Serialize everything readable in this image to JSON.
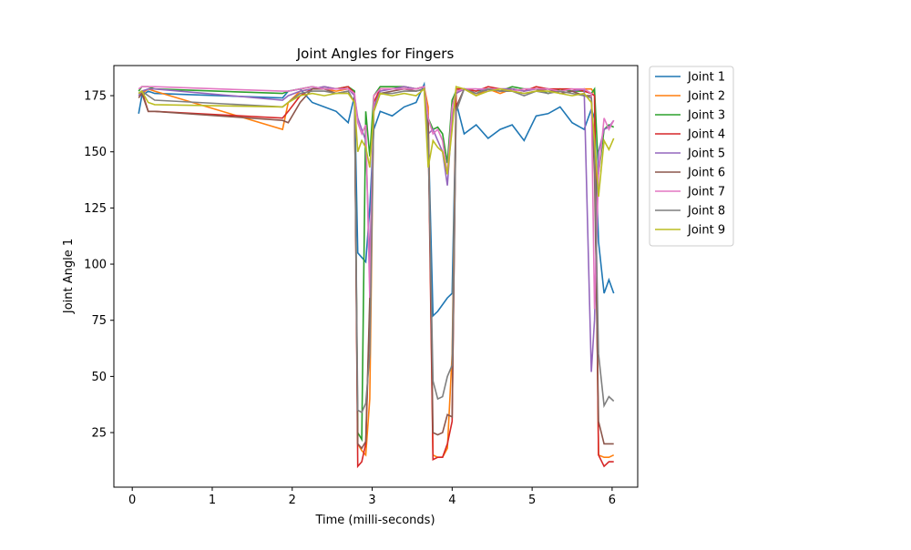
{
  "chart_data": {
    "type": "line",
    "title": "Joint Angles for Fingers",
    "x_label": "Time (milli-seconds)",
    "y_label": "Joint Angle 1",
    "x": [
      0.08,
      0.12,
      0.2,
      0.28,
      1.88,
      1.95,
      2.1,
      2.25,
      2.4,
      2.55,
      2.7,
      2.78,
      2.82,
      2.87,
      2.92,
      2.97,
      3.02,
      3.1,
      3.25,
      3.4,
      3.55,
      3.65,
      3.7,
      3.76,
      3.82,
      3.88,
      3.94,
      4.0,
      4.05,
      4.15,
      4.3,
      4.45,
      4.6,
      4.75,
      4.9,
      5.05,
      5.2,
      5.35,
      5.5,
      5.65,
      5.74,
      5.78,
      5.83,
      5.9,
      5.96,
      6.02
    ],
    "series": [
      {
        "name": "Joint 1",
        "color": "#1f77b4",
        "values": [
          167,
          175,
          177,
          176,
          174,
          177,
          178,
          172,
          170,
          168,
          163,
          175,
          105,
          103,
          101,
          125,
          160,
          168,
          166,
          170,
          172,
          180,
          160,
          77,
          79,
          82,
          85,
          87,
          172,
          158,
          162,
          156,
          160,
          162,
          155,
          166,
          167,
          170,
          163,
          160,
          169,
          165,
          110,
          87,
          93,
          87
        ]
      },
      {
        "name": "Joint 2",
        "color": "#ff7f0e",
        "values": [
          175,
          176,
          178,
          177,
          160,
          172,
          177,
          178,
          178,
          177,
          178,
          176,
          20,
          17,
          15,
          40,
          175,
          178,
          178,
          178,
          178,
          179,
          170,
          15,
          14,
          14,
          18,
          60,
          176,
          178,
          175,
          178,
          176,
          178,
          177,
          178,
          176,
          178,
          177,
          178,
          178,
          176,
          15,
          14,
          14,
          15
        ]
      },
      {
        "name": "Joint 3",
        "color": "#2ca02c",
        "values": [
          177,
          179,
          179,
          178,
          176,
          177,
          178,
          179,
          178,
          178,
          179,
          177,
          25,
          22,
          168,
          148,
          175,
          179,
          179,
          179,
          178,
          179,
          165,
          160,
          161,
          158,
          145,
          173,
          177,
          178,
          177,
          178,
          177,
          179,
          178,
          178,
          176,
          178,
          177,
          177,
          176,
          178,
          140,
          160,
          162,
          161
        ]
      },
      {
        "name": "Joint 4",
        "color": "#d62728",
        "values": [
          176,
          177,
          168,
          168,
          165,
          168,
          175,
          178,
          179,
          178,
          179,
          176,
          10,
          12,
          20,
          80,
          172,
          178,
          178,
          179,
          178,
          179,
          160,
          13,
          14,
          14,
          20,
          30,
          178,
          178,
          177,
          179,
          178,
          178,
          177,
          179,
          178,
          178,
          178,
          177,
          176,
          175,
          15,
          10,
          12,
          12
        ]
      },
      {
        "name": "Joint 5",
        "color": "#9467bd",
        "values": [
          175,
          177,
          178,
          178,
          173,
          175,
          177,
          178,
          179,
          178,
          178,
          175,
          165,
          160,
          155,
          100,
          170,
          177,
          178,
          179,
          178,
          179,
          158,
          160,
          155,
          150,
          135,
          165,
          176,
          178,
          178,
          177,
          178,
          178,
          177,
          178,
          178,
          176,
          177,
          178,
          52,
          75,
          150,
          160,
          161,
          164
        ]
      },
      {
        "name": "Joint 6",
        "color": "#8c564b",
        "values": [
          174,
          176,
          168,
          168,
          164,
          163,
          172,
          178,
          178,
          176,
          177,
          172,
          20,
          18,
          21,
          85,
          168,
          176,
          177,
          178,
          177,
          178,
          165,
          25,
          24,
          25,
          33,
          32,
          170,
          178,
          176,
          178,
          177,
          177,
          176,
          177,
          178,
          176,
          177,
          175,
          175,
          140,
          30,
          20,
          20,
          20
        ]
      },
      {
        "name": "Joint 7",
        "color": "#e377c2",
        "values": [
          178,
          179,
          179,
          179,
          177,
          177,
          178,
          179,
          178,
          178,
          178,
          176,
          163,
          158,
          162,
          85,
          175,
          178,
          178,
          178,
          178,
          179,
          165,
          158,
          160,
          155,
          140,
          170,
          177,
          178,
          178,
          178,
          178,
          177,
          178,
          178,
          178,
          177,
          178,
          178,
          176,
          80,
          140,
          165,
          160,
          164
        ]
      },
      {
        "name": "Joint 8",
        "color": "#7f7f7f",
        "values": [
          176,
          177,
          175,
          173,
          170,
          172,
          176,
          177,
          177,
          176,
          177,
          172,
          35,
          34,
          38,
          60,
          168,
          176,
          176,
          177,
          177,
          178,
          155,
          48,
          40,
          41,
          50,
          55,
          168,
          178,
          176,
          178,
          177,
          177,
          175,
          177,
          176,
          177,
          176,
          175,
          174,
          150,
          60,
          37,
          41,
          39
        ]
      },
      {
        "name": "Joint 9",
        "color": "#bcbd22",
        "values": [
          176,
          177,
          172,
          171,
          170,
          172,
          175,
          176,
          175,
          176,
          176,
          172,
          150,
          155,
          152,
          143,
          168,
          176,
          175,
          176,
          175,
          178,
          143,
          155,
          152,
          150,
          140,
          160,
          179,
          178,
          175,
          177,
          178,
          177,
          176,
          177,
          177,
          176,
          175,
          176,
          172,
          155,
          130,
          155,
          151,
          156
        ]
      }
    ],
    "xlim": [
      -0.23,
      6.32
    ],
    "ylim": [
      0.7,
      188.4
    ],
    "xticks": [
      0,
      1,
      2,
      3,
      4,
      5,
      6
    ],
    "yticks": [
      25,
      50,
      75,
      100,
      125,
      150,
      175
    ],
    "legend": "outside-upper-right"
  }
}
